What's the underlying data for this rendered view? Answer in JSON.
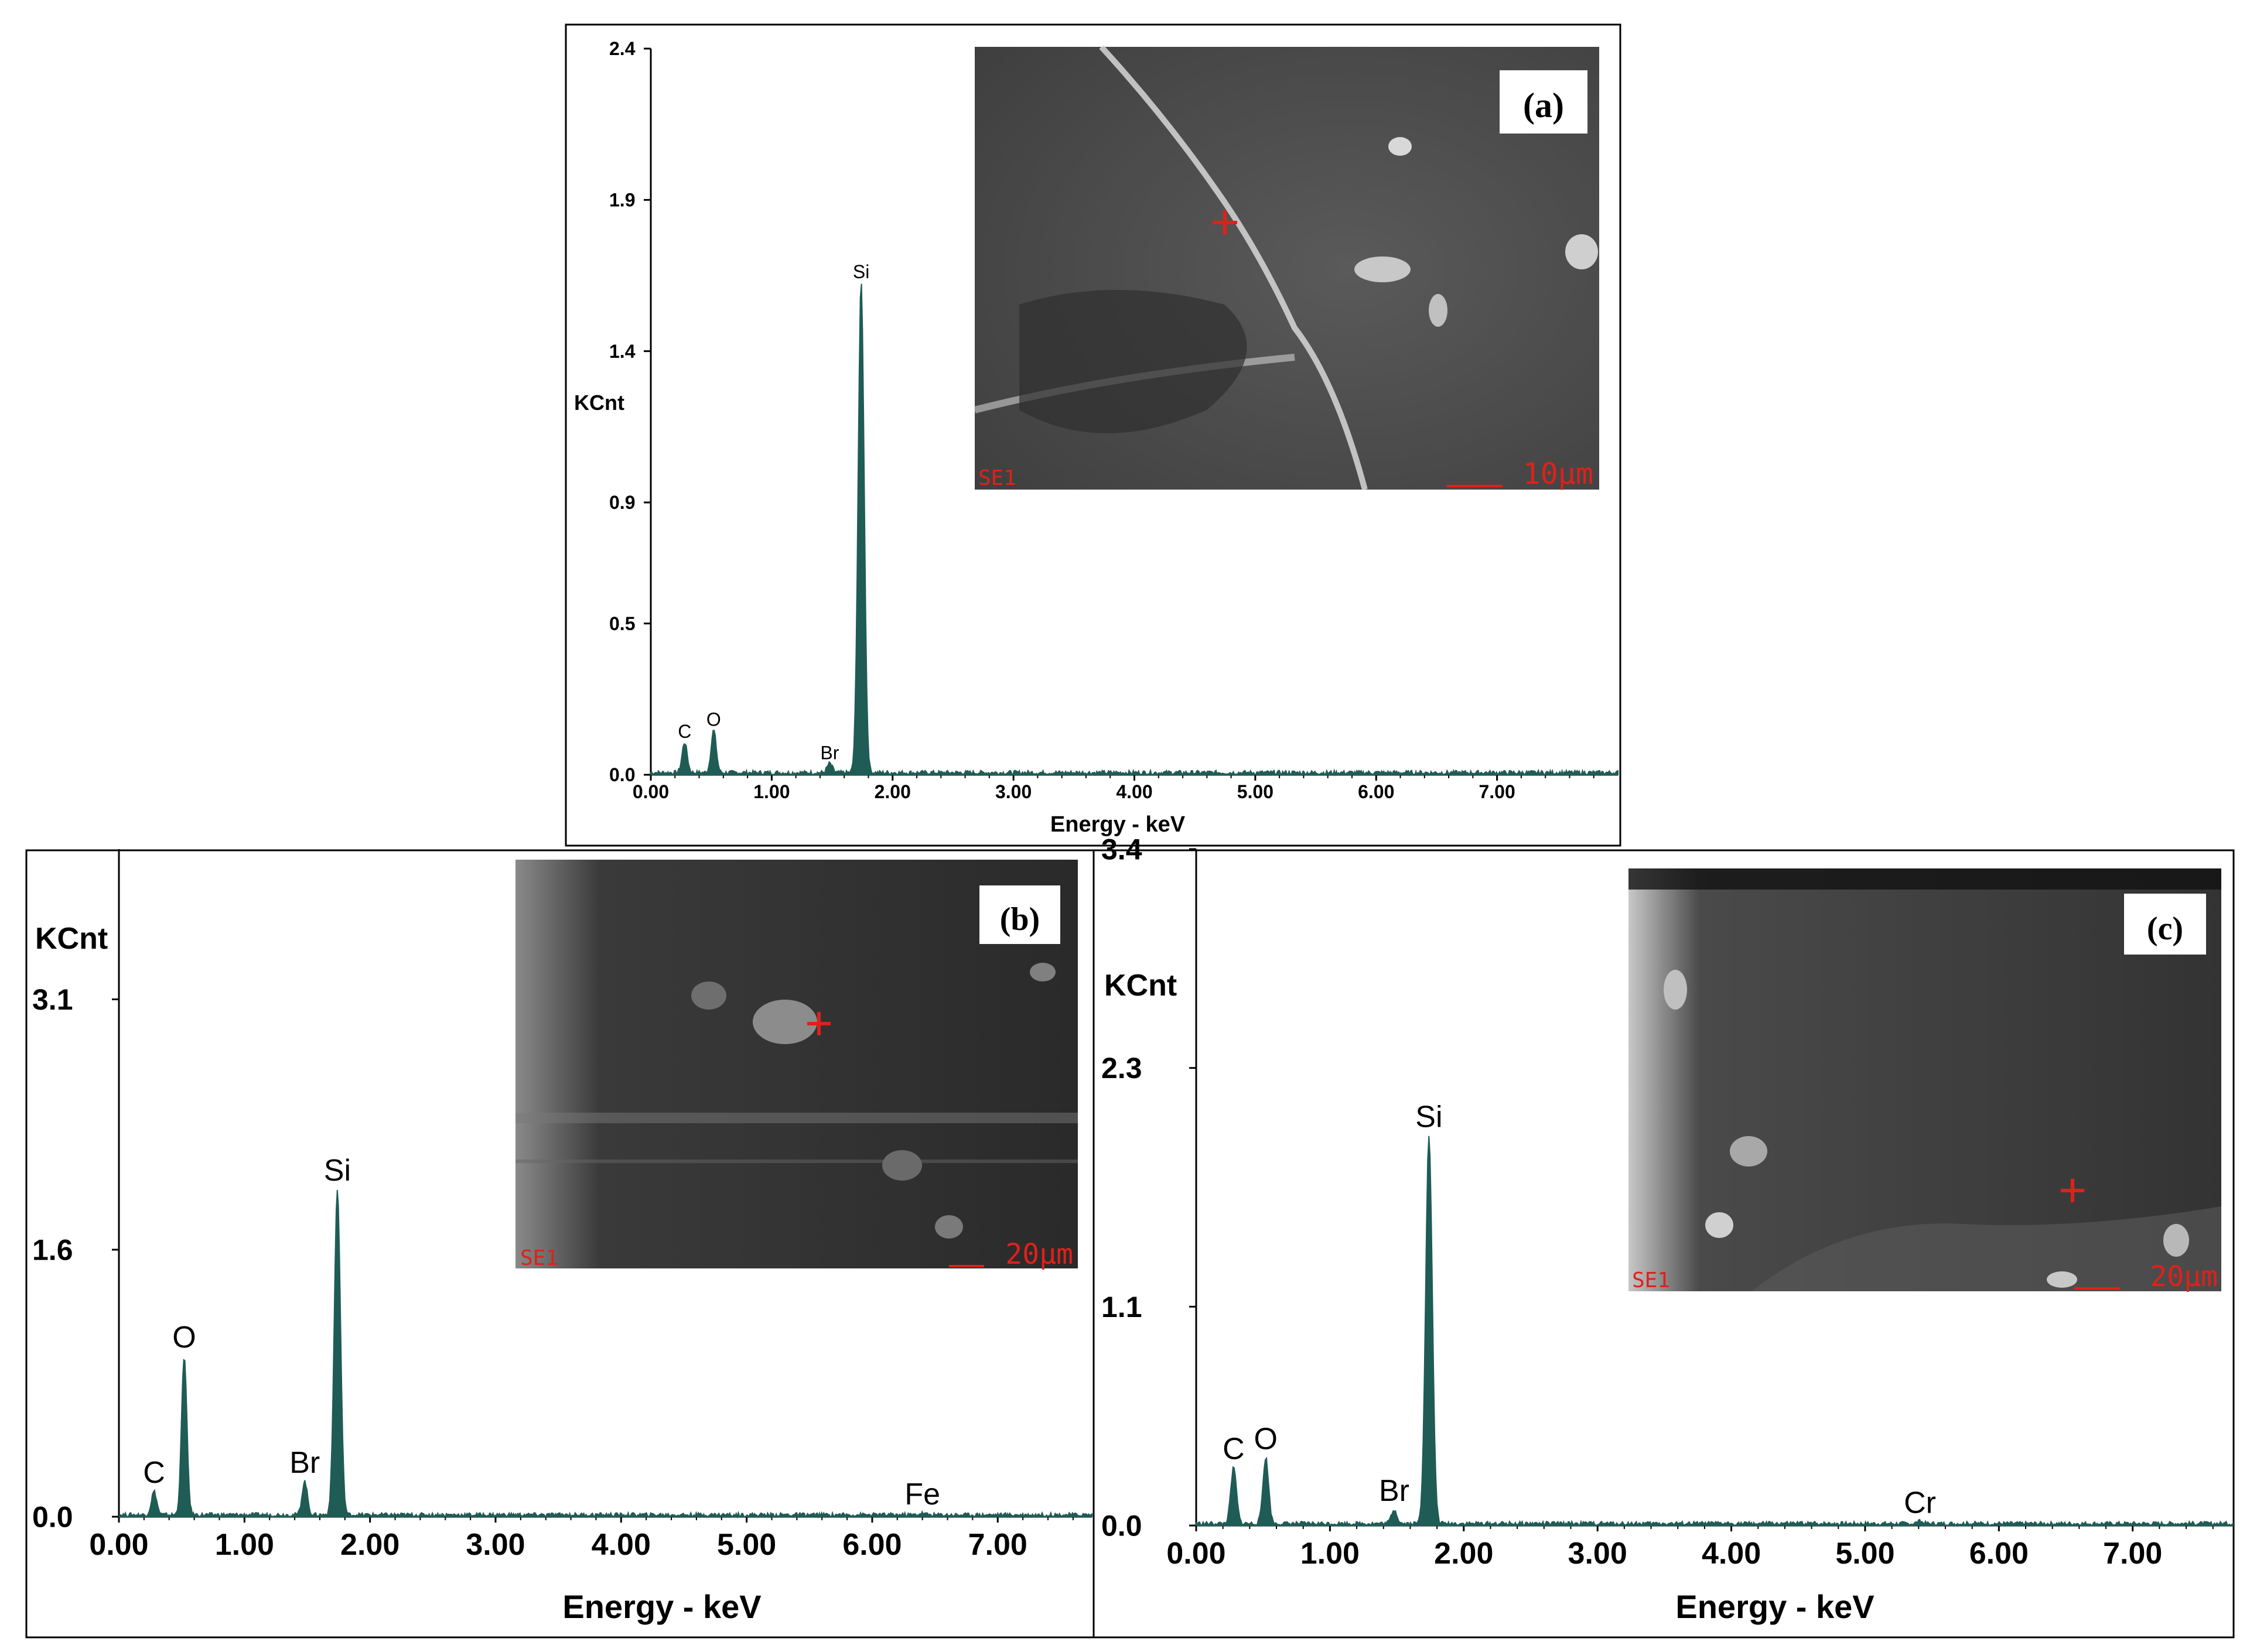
{
  "colors": {
    "spectrum": "#1f5c55",
    "accent_red": "#e0201a",
    "frame": "#000000"
  },
  "chart_data": [
    {
      "panel": "a",
      "type": "line",
      "title": "",
      "xlabel": "Energy - keV",
      "ylabel": "KCnt",
      "xlim": [
        0,
        8
      ],
      "ylim": [
        0,
        2.4
      ],
      "x_tick_labels": [
        "0.00",
        "1.00",
        "2.00",
        "3.00",
        "4.00",
        "5.00",
        "6.00",
        "7.00"
      ],
      "y_tick_labels": [
        "0.0",
        "0.5",
        "0.9",
        "1.4",
        "1.9",
        "2.4"
      ],
      "peaks": [
        {
          "element": "C",
          "energy": 0.28,
          "counts": 0.1
        },
        {
          "element": "O",
          "energy": 0.52,
          "counts": 0.14
        },
        {
          "element": "Br",
          "energy": 1.48,
          "counts": 0.03
        },
        {
          "element": "Si",
          "energy": 1.74,
          "counts": 1.62
        }
      ],
      "inset": {
        "panel_label": "(a)",
        "detector": "SE1",
        "scale_bar": "10µm"
      }
    },
    {
      "panel": "b",
      "type": "line",
      "title": "",
      "xlabel": "Energy - keV",
      "ylabel": "KCnt",
      "xlim": [
        0,
        7.75
      ],
      "ylim": [
        0,
        4.0
      ],
      "x_tick_labels": [
        "0.00",
        "1.00",
        "2.00",
        "3.00",
        "4.00",
        "5.00",
        "6.00",
        "7.00"
      ],
      "y_tick_labels": [
        "0.0",
        "1.6",
        "3.1"
      ],
      "peaks": [
        {
          "element": "C",
          "energy": 0.28,
          "counts": 0.14
        },
        {
          "element": "O",
          "energy": 0.52,
          "counts": 0.95
        },
        {
          "element": "Br",
          "energy": 1.48,
          "counts": 0.2
        },
        {
          "element": "Si",
          "energy": 1.74,
          "counts": 1.95
        },
        {
          "element": "Fe",
          "energy": 6.4,
          "counts": 0.01
        }
      ],
      "inset": {
        "panel_label": "(b)",
        "detector": "SE1",
        "scale_bar": "20µm"
      }
    },
    {
      "panel": "c",
      "type": "line",
      "title": "",
      "xlabel": "Energy - keV",
      "ylabel": "KCnt",
      "xlim": [
        0,
        7.75
      ],
      "ylim": [
        0,
        3.4
      ],
      "x_tick_labels": [
        "0.00",
        "1.00",
        "2.00",
        "3.00",
        "4.00",
        "5.00",
        "6.00",
        "7.00"
      ],
      "y_tick_labels": [
        "0.0",
        "1.1",
        "2.3",
        "3.4"
      ],
      "peaks": [
        {
          "element": "C",
          "energy": 0.28,
          "counts": 0.28
        },
        {
          "element": "O",
          "energy": 0.52,
          "counts": 0.33
        },
        {
          "element": "Br",
          "energy": 1.48,
          "counts": 0.07
        },
        {
          "element": "Si",
          "energy": 1.74,
          "counts": 1.95
        },
        {
          "element": "Cr",
          "energy": 5.41,
          "counts": 0.01
        }
      ],
      "inset": {
        "panel_label": "(c)",
        "detector": "SE1",
        "scale_bar": "20µm"
      }
    }
  ]
}
